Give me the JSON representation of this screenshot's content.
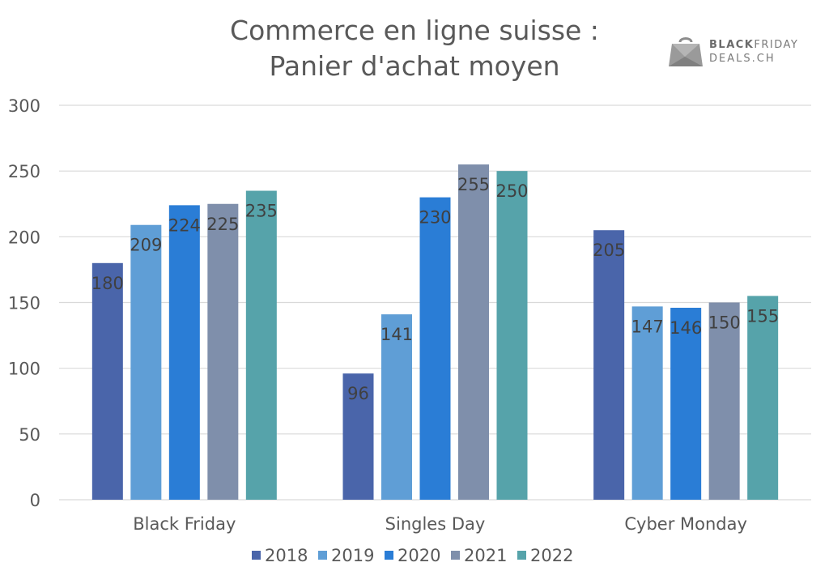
{
  "title_lines": [
    "Commerce en ligne suisse :",
    "Panier d'achat moyen"
  ],
  "logo": {
    "line1_bold": "BLACK",
    "line1_rest": "FRIDAY",
    "line2": "DEALS.CH"
  },
  "colors": {
    "2018": "#4a65aa",
    "2019": "#5f9ed6",
    "2020": "#2a7dd6",
    "2021": "#7f8fab",
    "2022": "#56a3aa",
    "grid": "#d9d9d9",
    "text": "#595959",
    "label": "#404040"
  },
  "chart_data": {
    "type": "bar",
    "title": "Commerce en ligne suisse : Panier d'achat moyen",
    "categories": [
      "Black Friday",
      "Singles Day",
      "Cyber Monday"
    ],
    "series": [
      {
        "name": "2018",
        "values": [
          180,
          96,
          205
        ]
      },
      {
        "name": "2019",
        "values": [
          209,
          141,
          147
        ]
      },
      {
        "name": "2020",
        "values": [
          224,
          230,
          146
        ]
      },
      {
        "name": "2021",
        "values": [
          225,
          255,
          150
        ]
      },
      {
        "name": "2022",
        "values": [
          235,
          250,
          155
        ]
      }
    ],
    "ylim": [
      0,
      300
    ],
    "yticks": [
      0,
      50,
      100,
      150,
      200,
      250,
      300
    ],
    "grid": true,
    "legend": "bottom",
    "data_labels": true
  }
}
